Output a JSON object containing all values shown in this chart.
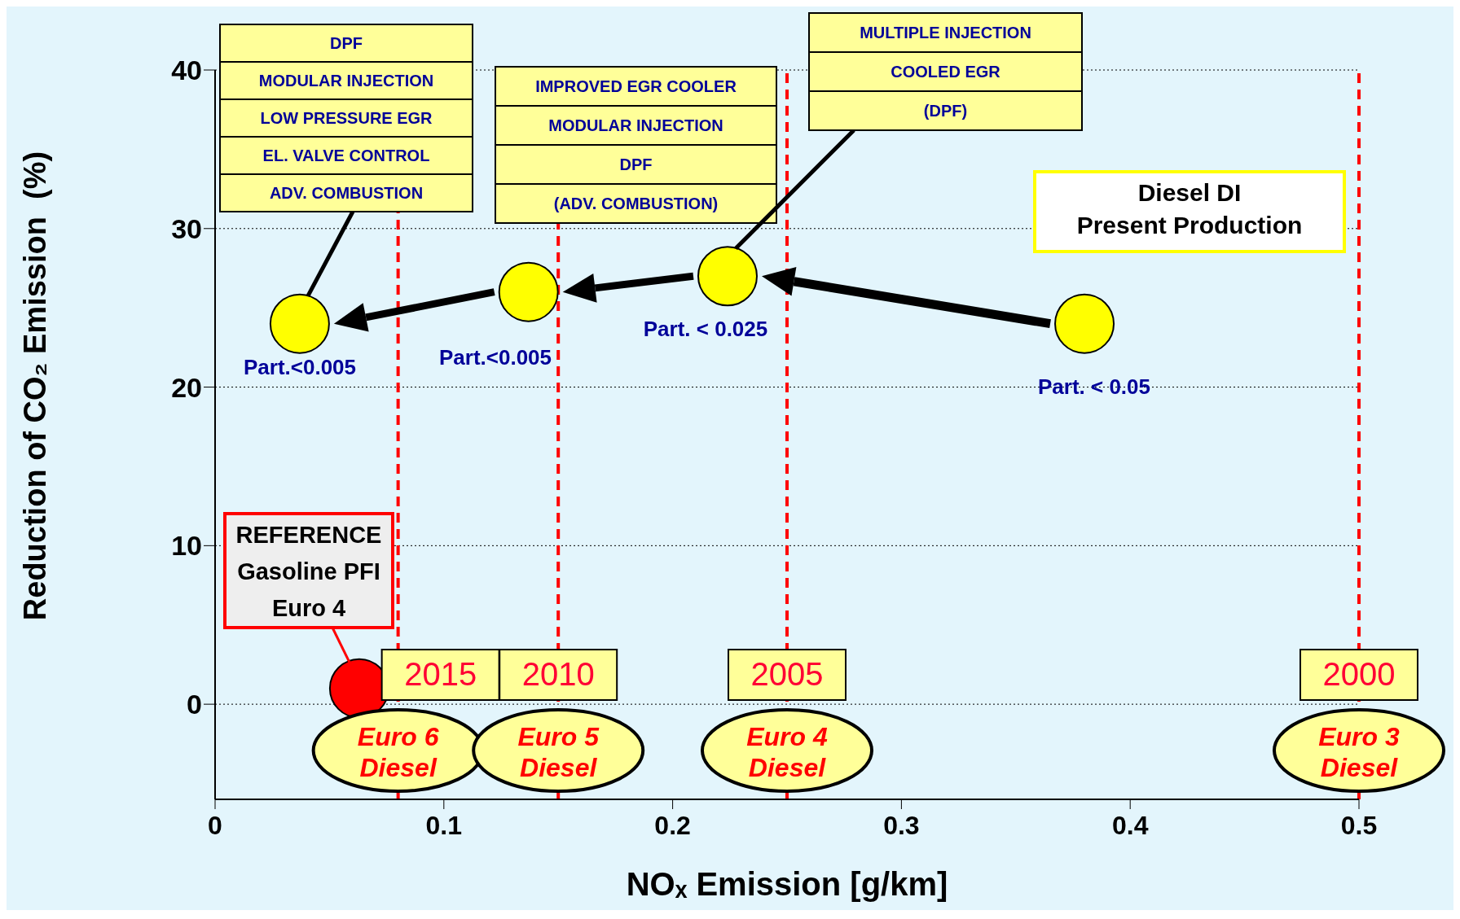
{
  "chart_data": {
    "type": "scatter",
    "xlabel": "NOₓ Emission [g/km]",
    "ylabel": "Reduction of CO₂ Emission  (%)",
    "series": [
      {
        "color": "#ff0000",
        "x": [
          0.063
        ],
        "values": [
          1
        ]
      },
      {
        "color": "#ffff00",
        "x": [
          0.037,
          0.137,
          0.224,
          0.38
        ],
        "values": [
          24,
          26,
          27,
          24
        ]
      }
    ],
    "xlim": [
      0,
      0.5
    ],
    "xticks": [
      0,
      0.1,
      0.2,
      0.3,
      0.4,
      0.5
    ],
    "ylim": [
      -6,
      40
    ],
    "yticks": [
      0,
      10,
      20,
      30,
      40
    ],
    "grid": "y",
    "legend": false,
    "ref_lines": [
      {
        "axis": "x",
        "value": 0.08,
        "color": "#ff0000",
        "line_style": "dashed"
      },
      {
        "axis": "x",
        "value": 0.15,
        "color": "#ff0000",
        "line_style": "dashed"
      },
      {
        "axis": "x",
        "value": 0.25,
        "color": "#ff0000",
        "line_style": "dashed"
      },
      {
        "axis": "x",
        "value": 0.5,
        "color": "#ff0000",
        "line_style": "dashed"
      }
    ],
    "annotations": [
      "DPF\nMODULAR INJECTION\nLOW PRESSURE EGR\nEL. VALVE CONTROL\nADV. COMBUSTION",
      "IMPROVED EGR COOLER\nMODULAR INJECTION\nDPF\n(ADV. COMBUSTION)",
      "MULTIPLE  INJECTION\nCOOLED EGR\n(DPF)",
      "Diesel DI\nPresent Production",
      "REFERENCE\nGasoline PFI\nEuro 4",
      "Part.<0.005",
      "Part.<0.005",
      "Part. < 0.025",
      "Part. < 0.05",
      "Euro 6\nDiesel",
      "Euro 5\nDiesel",
      "Euro 4\nDiesel",
      "Euro 3\nDiesel",
      "2015",
      "2010",
      "2005",
      "2000"
    ]
  }
}
